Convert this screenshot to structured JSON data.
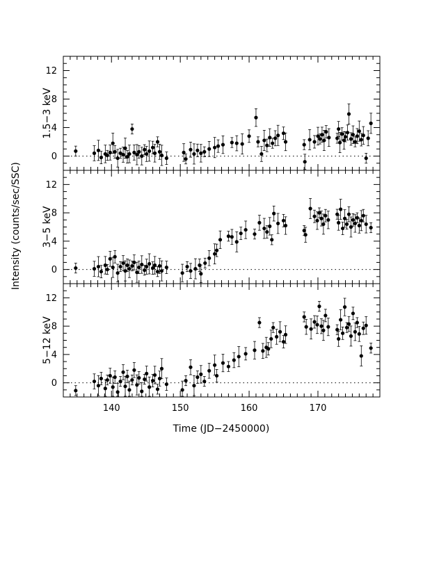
{
  "figure": {
    "ylabel": "Intensity (counts/sec/SSC)",
    "xlabel": "Time (JD−2450000)",
    "colors": {
      "ink": "#000000",
      "background": "#ffffff"
    }
  },
  "chart_data": [
    {
      "type": "scatter",
      "title": "",
      "panel_label": "1.5−3 keV",
      "xlim": [
        133,
        179
      ],
      "ylim": [
        -2,
        14
      ],
      "yticks": [
        0,
        4,
        8,
        12
      ],
      "ytick_labels": [
        "0",
        "4",
        "8",
        "12"
      ],
      "xticks": [
        140,
        150,
        160,
        170
      ],
      "xtick_labels": [],
      "zero_line": "dotted",
      "error_bars": true,
      "series": [
        {
          "points": [
            [
              134.8,
              0.7
            ],
            [
              137.5,
              0.4
            ],
            [
              138.1,
              0.8
            ],
            [
              138.5,
              -0.2
            ],
            [
              139.1,
              0.3
            ],
            [
              139.4,
              0.1
            ],
            [
              139.8,
              0.5
            ],
            [
              140.2,
              1.8
            ],
            [
              140.5,
              0.6
            ],
            [
              140.9,
              -0.3
            ],
            [
              141.3,
              0.4
            ],
            [
              141.7,
              0.2
            ],
            [
              142.0,
              1.1
            ],
            [
              142.3,
              -0.1
            ],
            [
              142.6,
              0.3
            ],
            [
              143.0,
              3.8
            ],
            [
              143.3,
              0.5
            ],
            [
              143.7,
              0.2
            ],
            [
              144.0,
              0.6
            ],
            [
              144.4,
              0.0
            ],
            [
              144.8,
              0.9
            ],
            [
              145.1,
              0.3
            ],
            [
              145.5,
              0.7
            ],
            [
              146.0,
              1.2
            ],
            [
              146.3,
              0.4
            ],
            [
              146.7,
              2.0
            ],
            [
              147.0,
              0.6
            ],
            [
              147.3,
              0.1
            ],
            [
              148.0,
              -0.3
            ],
            [
              150.5,
              0.5
            ],
            [
              150.8,
              -0.4
            ],
            [
              151.5,
              0.9
            ],
            [
              152.0,
              0.3
            ],
            [
              152.5,
              0.8
            ],
            [
              153.0,
              0.4
            ],
            [
              153.5,
              0.6
            ],
            [
              154.2,
              1.0
            ],
            [
              155.0,
              1.2
            ],
            [
              155.5,
              1.4
            ],
            [
              156.2,
              1.6
            ],
            [
              157.5,
              1.9
            ],
            [
              158.2,
              1.8
            ],
            [
              159.0,
              1.7
            ],
            [
              160.0,
              2.8
            ],
            [
              161.0,
              5.4
            ],
            [
              161.3,
              2.0
            ],
            [
              161.8,
              0.3
            ],
            [
              162.2,
              2.2
            ],
            [
              162.6,
              1.5
            ],
            [
              163.0,
              2.6
            ],
            [
              163.4,
              1.8
            ],
            [
              163.8,
              2.5
            ],
            [
              164.2,
              2.9
            ],
            [
              165.0,
              3.2
            ],
            [
              165.3,
              2.0
            ],
            [
              168.0,
              1.6
            ],
            [
              168.1,
              -0.8
            ],
            [
              168.8,
              2.3
            ],
            [
              169.5,
              2.0
            ],
            [
              170.0,
              2.8
            ],
            [
              170.3,
              2.4
            ],
            [
              170.6,
              3.0
            ],
            [
              170.9,
              2.2
            ],
            [
              171.2,
              3.4
            ],
            [
              171.6,
              2.6
            ],
            [
              172.8,
              2.5
            ],
            [
              173.0,
              3.8
            ],
            [
              173.2,
              1.9
            ],
            [
              173.5,
              3.1
            ],
            [
              173.8,
              2.2
            ],
            [
              174.0,
              2.7
            ],
            [
              174.3,
              3.3
            ],
            [
              174.5,
              5.9
            ],
            [
              174.8,
              2.4
            ],
            [
              175.1,
              3.0
            ],
            [
              175.4,
              2.0
            ],
            [
              175.7,
              2.8
            ],
            [
              176.0,
              3.5
            ],
            [
              176.3,
              2.3
            ],
            [
              176.6,
              2.9
            ],
            [
              177.0,
              -0.3
            ],
            [
              177.3,
              2.5
            ],
            [
              177.7,
              4.6
            ]
          ]
        }
      ]
    },
    {
      "type": "scatter",
      "title": "",
      "panel_label": "3−5 keV",
      "xlim": [
        133,
        179
      ],
      "ylim": [
        -2,
        14
      ],
      "yticks": [
        0,
        4,
        8,
        12
      ],
      "ytick_labels": [
        "0",
        "4",
        "8",
        "12"
      ],
      "xticks": [
        140,
        150,
        160,
        170
      ],
      "xtick_labels": [],
      "zero_line": "dotted",
      "error_bars": true,
      "series": [
        {
          "points": [
            [
              134.8,
              0.2
            ],
            [
              137.5,
              0.1
            ],
            [
              138.1,
              0.4
            ],
            [
              138.5,
              -0.3
            ],
            [
              139.1,
              0.6
            ],
            [
              139.4,
              0.0
            ],
            [
              139.8,
              1.5
            ],
            [
              140.2,
              0.3
            ],
            [
              140.5,
              1.8
            ],
            [
              140.9,
              -0.5
            ],
            [
              141.3,
              0.4
            ],
            [
              141.7,
              0.9
            ],
            [
              142.0,
              -0.2
            ],
            [
              142.3,
              0.6
            ],
            [
              142.6,
              0.1
            ],
            [
              143.0,
              0.5
            ],
            [
              143.3,
              1.0
            ],
            [
              143.7,
              -0.4
            ],
            [
              144.0,
              0.3
            ],
            [
              144.4,
              0.7
            ],
            [
              144.8,
              -0.1
            ],
            [
              145.1,
              0.4
            ],
            [
              145.5,
              0.8
            ],
            [
              146.0,
              0.2
            ],
            [
              146.3,
              0.6
            ],
            [
              146.7,
              -0.3
            ],
            [
              147.0,
              0.5
            ],
            [
              147.3,
              -0.2
            ],
            [
              148.0,
              0.3
            ],
            [
              150.3,
              -0.5
            ],
            [
              151.0,
              0.4
            ],
            [
              151.5,
              -0.2
            ],
            [
              152.2,
              0.1
            ],
            [
              152.8,
              0.6
            ],
            [
              153.0,
              -0.6
            ],
            [
              153.6,
              0.9
            ],
            [
              154.2,
              1.6
            ],
            [
              155.0,
              2.2
            ],
            [
              155.3,
              2.7
            ],
            [
              155.8,
              4.2
            ],
            [
              157.0,
              4.7
            ],
            [
              157.5,
              4.6
            ],
            [
              158.2,
              3.9
            ],
            [
              158.8,
              5.1
            ],
            [
              159.5,
              5.6
            ],
            [
              160.8,
              5.0
            ],
            [
              161.5,
              6.6
            ],
            [
              162.2,
              5.8
            ],
            [
              162.6,
              5.3
            ],
            [
              163.0,
              6.1
            ],
            [
              163.3,
              4.2
            ],
            [
              163.6,
              7.9
            ],
            [
              164.2,
              6.5
            ],
            [
              165.0,
              6.9
            ],
            [
              165.3,
              6.2
            ],
            [
              168.0,
              5.5
            ],
            [
              168.2,
              4.9
            ],
            [
              168.9,
              8.6
            ],
            [
              169.5,
              7.5
            ],
            [
              169.9,
              6.9
            ],
            [
              170.2,
              8.0
            ],
            [
              170.5,
              7.2
            ],
            [
              170.8,
              6.4
            ],
            [
              171.1,
              7.6
            ],
            [
              171.5,
              7.0
            ],
            [
              172.8,
              7.8
            ],
            [
              173.0,
              6.6
            ],
            [
              173.3,
              8.5
            ],
            [
              173.6,
              5.8
            ],
            [
              173.9,
              7.2
            ],
            [
              174.2,
              6.4
            ],
            [
              174.5,
              7.8
            ],
            [
              174.8,
              6.0
            ],
            [
              175.1,
              7.0
            ],
            [
              175.4,
              6.5
            ],
            [
              175.7,
              7.3
            ],
            [
              176.0,
              6.2
            ],
            [
              176.3,
              6.9
            ],
            [
              176.6,
              7.6
            ],
            [
              177.0,
              6.4
            ],
            [
              177.7,
              5.9
            ]
          ]
        }
      ]
    },
    {
      "type": "scatter",
      "title": "",
      "panel_label": "5−12 keV",
      "xlim": [
        133,
        179
      ],
      "ylim": [
        -2,
        14
      ],
      "yticks": [
        0,
        4,
        8,
        12
      ],
      "ytick_labels": [
        "0",
        "4",
        "8",
        "12"
      ],
      "xticks": [
        140,
        150,
        160,
        170
      ],
      "xtick_labels": [
        "140",
        "150",
        "160",
        "170"
      ],
      "zero_line": "dotted",
      "error_bars": true,
      "series": [
        {
          "points": [
            [
              134.8,
              -1.1
            ],
            [
              137.5,
              0.2
            ],
            [
              138.1,
              -0.4
            ],
            [
              138.5,
              0.6
            ],
            [
              139.1,
              -0.8
            ],
            [
              139.4,
              0.4
            ],
            [
              139.8,
              1.0
            ],
            [
              140.2,
              -0.6
            ],
            [
              140.5,
              0.8
            ],
            [
              140.9,
              -1.3
            ],
            [
              141.3,
              0.2
            ],
            [
              141.7,
              1.5
            ],
            [
              142.0,
              -0.5
            ],
            [
              142.3,
              0.9
            ],
            [
              142.6,
              -1.0
            ],
            [
              143.0,
              0.4
            ],
            [
              143.3,
              1.8
            ],
            [
              143.7,
              -0.3
            ],
            [
              144.0,
              0.7
            ],
            [
              144.4,
              -1.2
            ],
            [
              144.8,
              0.5
            ],
            [
              145.1,
              1.3
            ],
            [
              145.5,
              -0.6
            ],
            [
              146.0,
              0.3
            ],
            [
              146.3,
              1.1
            ],
            [
              146.7,
              -0.9
            ],
            [
              147.0,
              0.6
            ],
            [
              147.3,
              2.0
            ],
            [
              148.0,
              -0.2
            ],
            [
              150.3,
              -1.0
            ],
            [
              150.8,
              0.3
            ],
            [
              151.5,
              2.2
            ],
            [
              152.0,
              -0.4
            ],
            [
              152.5,
              0.8
            ],
            [
              153.0,
              1.2
            ],
            [
              153.5,
              0.2
            ],
            [
              154.2,
              1.7
            ],
            [
              155.0,
              2.5
            ],
            [
              155.3,
              1.0
            ],
            [
              156.2,
              2.8
            ],
            [
              157.0,
              2.3
            ],
            [
              157.8,
              3.2
            ],
            [
              158.5,
              3.7
            ],
            [
              159.5,
              4.1
            ],
            [
              160.8,
              4.6
            ],
            [
              161.5,
              8.5
            ],
            [
              162.0,
              4.5
            ],
            [
              162.5,
              5.0
            ],
            [
              162.8,
              4.8
            ],
            [
              163.2,
              6.2
            ],
            [
              163.5,
              7.8
            ],
            [
              164.0,
              6.5
            ],
            [
              164.5,
              7.2
            ],
            [
              165.0,
              5.8
            ],
            [
              165.3,
              6.8
            ],
            [
              168.0,
              9.3
            ],
            [
              168.3,
              7.9
            ],
            [
              169.0,
              7.6
            ],
            [
              169.5,
              8.6
            ],
            [
              169.9,
              8.2
            ],
            [
              170.2,
              10.8
            ],
            [
              170.5,
              8.0
            ],
            [
              170.8,
              7.4
            ],
            [
              171.1,
              9.5
            ],
            [
              171.5,
              7.9
            ],
            [
              172.8,
              7.5
            ],
            [
              173.0,
              6.2
            ],
            [
              173.3,
              8.9
            ],
            [
              173.6,
              7.0
            ],
            [
              173.9,
              10.7
            ],
            [
              174.2,
              7.8
            ],
            [
              174.5,
              8.3
            ],
            [
              174.8,
              6.6
            ],
            [
              175.1,
              9.8
            ],
            [
              175.4,
              7.2
            ],
            [
              175.7,
              8.5
            ],
            [
              176.0,
              6.9
            ],
            [
              176.3,
              3.8
            ],
            [
              176.6,
              7.7
            ],
            [
              177.0,
              8.1
            ],
            [
              177.7,
              4.9
            ]
          ]
        }
      ]
    }
  ]
}
